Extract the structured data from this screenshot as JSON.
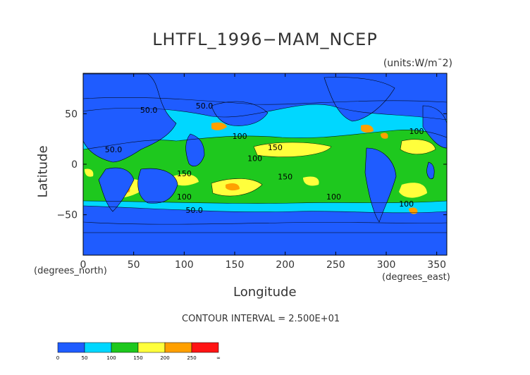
{
  "chart_data": {
    "type": "heatmap",
    "title": "LHTFL_1996−MAM_NCEP",
    "units": "(units:W/m¯2)",
    "xlabel": "Longitude",
    "ylabel": "Latitude",
    "x_sublabel": "(degrees_east)",
    "y_sublabel": "(degrees_north)",
    "xlim": [
      0,
      360
    ],
    "ylim": [
      -90,
      90
    ],
    "x_ticks": [
      0,
      50,
      100,
      150,
      200,
      250,
      300,
      350
    ],
    "y_ticks": [
      50,
      0,
      -50
    ],
    "contour_interval_text": "CONTOUR INTERVAL = 2.500E+01",
    "contour_labels": [
      {
        "text": "50.0",
        "x": 65,
        "y": 51
      },
      {
        "text": "50.0",
        "x": 120,
        "y": 55
      },
      {
        "text": "50.0",
        "x": 30,
        "y": 12
      },
      {
        "text": "100",
        "x": 155,
        "y": 25
      },
      {
        "text": "150",
        "x": 190,
        "y": 14
      },
      {
        "text": "100",
        "x": 170,
        "y": 3
      },
      {
        "text": "150",
        "x": 100,
        "y": -12
      },
      {
        "text": "100",
        "x": 100,
        "y": -35
      },
      {
        "text": "50.0",
        "x": 110,
        "y": -48
      },
      {
        "text": "150",
        "x": 200,
        "y": -15
      },
      {
        "text": "100",
        "x": 248,
        "y": -35
      },
      {
        "text": "100",
        "x": 330,
        "y": 30
      },
      {
        "text": "100",
        "x": 320,
        "y": -42
      }
    ],
    "colorbar": {
      "ticks": [
        "0",
        "50",
        "100",
        "150",
        "200",
        "250",
        "∞"
      ],
      "colors": [
        "#1f5cff",
        "#00d7ff",
        "#1ec81e",
        "#ffff3c",
        "#ffa000",
        "#ff1414"
      ]
    }
  }
}
